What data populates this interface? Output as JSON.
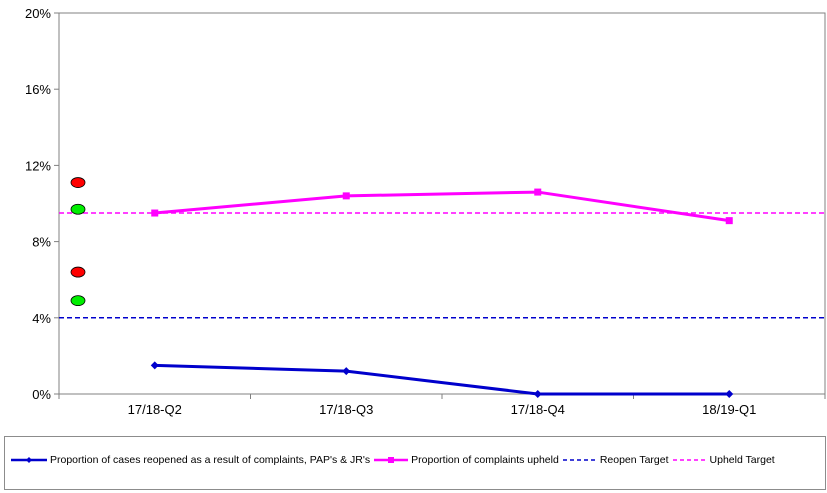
{
  "chart_data": {
    "type": "line",
    "categories": [
      "17/18-Q2",
      "17/18-Q3",
      "17/18-Q4",
      "18/19-Q1"
    ],
    "y_ticks": [
      "0%",
      "4%",
      "8%",
      "12%",
      "16%",
      "20%"
    ],
    "ylim": [
      0,
      20
    ],
    "series": [
      {
        "name": "Proportion of cases reopened as a result of complaints, PAP's & JR's",
        "color": "#0000cc",
        "marker": "diamond",
        "values": [
          1.5,
          1.2,
          0.0,
          0.0
        ]
      },
      {
        "name": "Proportion of complaints upheld",
        "color": "#ff00ff",
        "marker": "square",
        "values": [
          9.5,
          10.4,
          10.6,
          9.1
        ]
      }
    ],
    "targets": [
      {
        "name": "Reopen Target",
        "color": "#0000cc",
        "style": "dashed",
        "value": 4.0
      },
      {
        "name": "Upheld Target",
        "color": "#ff00ff",
        "style": "dashed",
        "value": 9.5
      }
    ],
    "status_indicators": [
      {
        "value": 11.1,
        "color": "#ff0000"
      },
      {
        "value": 9.7,
        "color": "#00ee00"
      },
      {
        "value": 6.4,
        "color": "#ff0000"
      },
      {
        "value": 4.9,
        "color": "#00ee00"
      }
    ],
    "grid": false,
    "legend_position": "bottom"
  }
}
